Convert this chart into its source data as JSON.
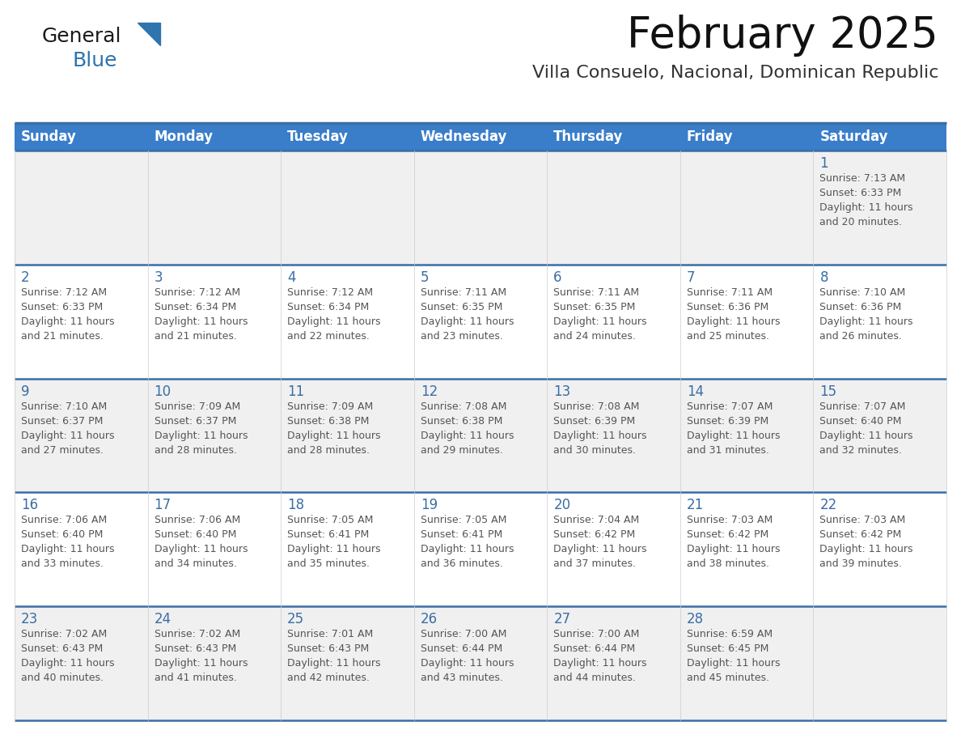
{
  "title": "February 2025",
  "subtitle": "Villa Consuelo, Nacional, Dominican Republic",
  "header_bg": "#3A7DC9",
  "header_text_color": "#FFFFFF",
  "cell_bg_light": "#F0F0F0",
  "cell_bg_white": "#FFFFFF",
  "separator_color": "#3A6EA5",
  "day_number_color": "#3A6EA5",
  "info_text_color": "#555555",
  "days_of_week": [
    "Sunday",
    "Monday",
    "Tuesday",
    "Wednesday",
    "Thursday",
    "Friday",
    "Saturday"
  ],
  "calendar_data": [
    [
      {
        "day": null,
        "info": null
      },
      {
        "day": null,
        "info": null
      },
      {
        "day": null,
        "info": null
      },
      {
        "day": null,
        "info": null
      },
      {
        "day": null,
        "info": null
      },
      {
        "day": null,
        "info": null
      },
      {
        "day": 1,
        "info": "Sunrise: 7:13 AM\nSunset: 6:33 PM\nDaylight: 11 hours\nand 20 minutes."
      }
    ],
    [
      {
        "day": 2,
        "info": "Sunrise: 7:12 AM\nSunset: 6:33 PM\nDaylight: 11 hours\nand 21 minutes."
      },
      {
        "day": 3,
        "info": "Sunrise: 7:12 AM\nSunset: 6:34 PM\nDaylight: 11 hours\nand 21 minutes."
      },
      {
        "day": 4,
        "info": "Sunrise: 7:12 AM\nSunset: 6:34 PM\nDaylight: 11 hours\nand 22 minutes."
      },
      {
        "day": 5,
        "info": "Sunrise: 7:11 AM\nSunset: 6:35 PM\nDaylight: 11 hours\nand 23 minutes."
      },
      {
        "day": 6,
        "info": "Sunrise: 7:11 AM\nSunset: 6:35 PM\nDaylight: 11 hours\nand 24 minutes."
      },
      {
        "day": 7,
        "info": "Sunrise: 7:11 AM\nSunset: 6:36 PM\nDaylight: 11 hours\nand 25 minutes."
      },
      {
        "day": 8,
        "info": "Sunrise: 7:10 AM\nSunset: 6:36 PM\nDaylight: 11 hours\nand 26 minutes."
      }
    ],
    [
      {
        "day": 9,
        "info": "Sunrise: 7:10 AM\nSunset: 6:37 PM\nDaylight: 11 hours\nand 27 minutes."
      },
      {
        "day": 10,
        "info": "Sunrise: 7:09 AM\nSunset: 6:37 PM\nDaylight: 11 hours\nand 28 minutes."
      },
      {
        "day": 11,
        "info": "Sunrise: 7:09 AM\nSunset: 6:38 PM\nDaylight: 11 hours\nand 28 minutes."
      },
      {
        "day": 12,
        "info": "Sunrise: 7:08 AM\nSunset: 6:38 PM\nDaylight: 11 hours\nand 29 minutes."
      },
      {
        "day": 13,
        "info": "Sunrise: 7:08 AM\nSunset: 6:39 PM\nDaylight: 11 hours\nand 30 minutes."
      },
      {
        "day": 14,
        "info": "Sunrise: 7:07 AM\nSunset: 6:39 PM\nDaylight: 11 hours\nand 31 minutes."
      },
      {
        "day": 15,
        "info": "Sunrise: 7:07 AM\nSunset: 6:40 PM\nDaylight: 11 hours\nand 32 minutes."
      }
    ],
    [
      {
        "day": 16,
        "info": "Sunrise: 7:06 AM\nSunset: 6:40 PM\nDaylight: 11 hours\nand 33 minutes."
      },
      {
        "day": 17,
        "info": "Sunrise: 7:06 AM\nSunset: 6:40 PM\nDaylight: 11 hours\nand 34 minutes."
      },
      {
        "day": 18,
        "info": "Sunrise: 7:05 AM\nSunset: 6:41 PM\nDaylight: 11 hours\nand 35 minutes."
      },
      {
        "day": 19,
        "info": "Sunrise: 7:05 AM\nSunset: 6:41 PM\nDaylight: 11 hours\nand 36 minutes."
      },
      {
        "day": 20,
        "info": "Sunrise: 7:04 AM\nSunset: 6:42 PM\nDaylight: 11 hours\nand 37 minutes."
      },
      {
        "day": 21,
        "info": "Sunrise: 7:03 AM\nSunset: 6:42 PM\nDaylight: 11 hours\nand 38 minutes."
      },
      {
        "day": 22,
        "info": "Sunrise: 7:03 AM\nSunset: 6:42 PM\nDaylight: 11 hours\nand 39 minutes."
      }
    ],
    [
      {
        "day": 23,
        "info": "Sunrise: 7:02 AM\nSunset: 6:43 PM\nDaylight: 11 hours\nand 40 minutes."
      },
      {
        "day": 24,
        "info": "Sunrise: 7:02 AM\nSunset: 6:43 PM\nDaylight: 11 hours\nand 41 minutes."
      },
      {
        "day": 25,
        "info": "Sunrise: 7:01 AM\nSunset: 6:43 PM\nDaylight: 11 hours\nand 42 minutes."
      },
      {
        "day": 26,
        "info": "Sunrise: 7:00 AM\nSunset: 6:44 PM\nDaylight: 11 hours\nand 43 minutes."
      },
      {
        "day": 27,
        "info": "Sunrise: 7:00 AM\nSunset: 6:44 PM\nDaylight: 11 hours\nand 44 minutes."
      },
      {
        "day": 28,
        "info": "Sunrise: 6:59 AM\nSunset: 6:45 PM\nDaylight: 11 hours\nand 45 minutes."
      },
      {
        "day": null,
        "info": null
      }
    ]
  ],
  "logo_general_color": "#1a1a1a",
  "logo_blue_color": "#2E74AE",
  "title_fontsize": 38,
  "subtitle_fontsize": 16,
  "header_fontsize": 12,
  "day_number_fontsize": 12,
  "info_fontsize": 9,
  "logo_fontsize": 18
}
